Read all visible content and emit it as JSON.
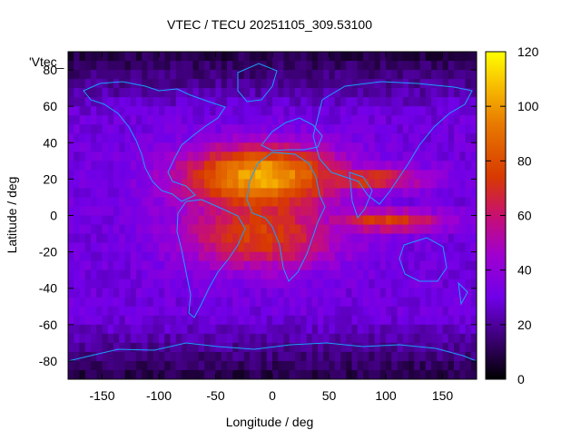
{
  "chart_data": {
    "type": "heatmap",
    "title": "VTEC / TECU 20251105_309.53100",
    "xlabel": "Longitude / deg",
    "ylabel": "Latitude / deg",
    "xlim": [
      -180,
      180
    ],
    "ylim": [
      -90,
      90
    ],
    "x_ticks": [
      -150,
      -100,
      -50,
      0,
      50,
      100,
      150
    ],
    "y_ticks": [
      -80,
      -60,
      -40,
      -20,
      0,
      20,
      40,
      60,
      80
    ],
    "colorbar": {
      "range": [
        0,
        120
      ],
      "ticks": [
        0,
        20,
        40,
        60,
        80,
        100,
        120
      ],
      "colormap": [
        "#000000",
        "#4b0082",
        "#8000ff",
        "#b000b0",
        "#d82020",
        "#e06000",
        "#f0a000",
        "#ffff00"
      ]
    },
    "legend_text": "'Vtec_",
    "grid": false,
    "description_of_values": {
      "background_mid_latitudes": 30,
      "polar_regions": 8,
      "equatorial_anomaly_peak": 105,
      "peak_lon_deg": -10,
      "peak_lat_deg": 22
    }
  }
}
